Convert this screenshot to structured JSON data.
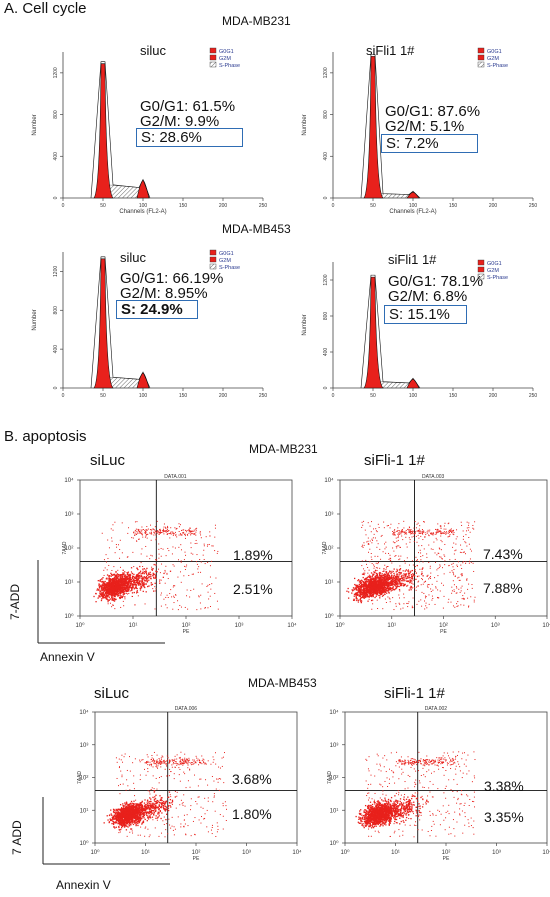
{
  "sectionA": "A. Cell cycle",
  "sectionB": "B. apoptosis",
  "cycle": {
    "legend": [
      "G0G1",
      "G2M",
      "S-Phase"
    ],
    "ylabel": "Number",
    "xlabel": "Channels (FL2-A)",
    "xticks": [
      "0",
      "50",
      "100",
      "150",
      "200",
      "250"
    ],
    "yticks": [
      "0",
      "400",
      "800",
      "1200"
    ],
    "rows": [
      {
        "cellline": "MDA-MB231",
        "panels": [
          {
            "label": "siluc",
            "g0g1": "G0/G1: 61.5%",
            "g2m": "G2/M: 9.9%",
            "s": "S: 28.6%"
          },
          {
            "label": "siFli1 1#",
            "g0g1": "G0/G1: 87.6%",
            "g2m": "G2/M: 5.1%",
            "s": "S: 7.2%"
          }
        ]
      },
      {
        "cellline": "MDA-MB453",
        "panels": [
          {
            "label": "siluc",
            "g0g1": "G0/G1: 66.19%",
            "g2m": "G2/M: 8.95%",
            "s": "S: 24.9%"
          },
          {
            "label": "siFli1 1#",
            "g0g1": "G0/G1: 78.1%",
            "g2m": "G2/M: 6.8%",
            "s": "S: 15.1%"
          }
        ]
      }
    ]
  },
  "apop": {
    "xaxis": "PE",
    "yaxis": "7AAD",
    "xticks": [
      "10⁰",
      "10¹",
      "10²",
      "10³",
      "10⁴"
    ],
    "yticks": [
      "10⁰",
      "10¹",
      "10²",
      "10³",
      "10⁴"
    ],
    "rows": [
      {
        "cellline": "MDA-MB231",
        "side_y": "7-ADD",
        "side_x": "Annexin V",
        "panels": [
          {
            "label": "siLuc",
            "data": "DATA.001",
            "upper": "1.89%",
            "lower": "2.51%"
          },
          {
            "label": "siFli-1 1#",
            "data": "DATA.003",
            "upper": "7.43%",
            "lower": "7.88%"
          }
        ]
      },
      {
        "cellline": "MDA-MB453",
        "side_y": "7 ADD",
        "side_x": "Annexin V",
        "panels": [
          {
            "label": "siLuc",
            "data": "DATA.006",
            "upper": "3.68%",
            "lower": "1.80%"
          },
          {
            "label": "siFli-1 1#",
            "data": "DATA.002",
            "upper": "3.38%",
            "lower": "3.35%"
          }
        ]
      }
    ]
  },
  "colors": {
    "red": "#e8211c",
    "box": "#2f6db4",
    "legendText": "#2a3a8f"
  }
}
